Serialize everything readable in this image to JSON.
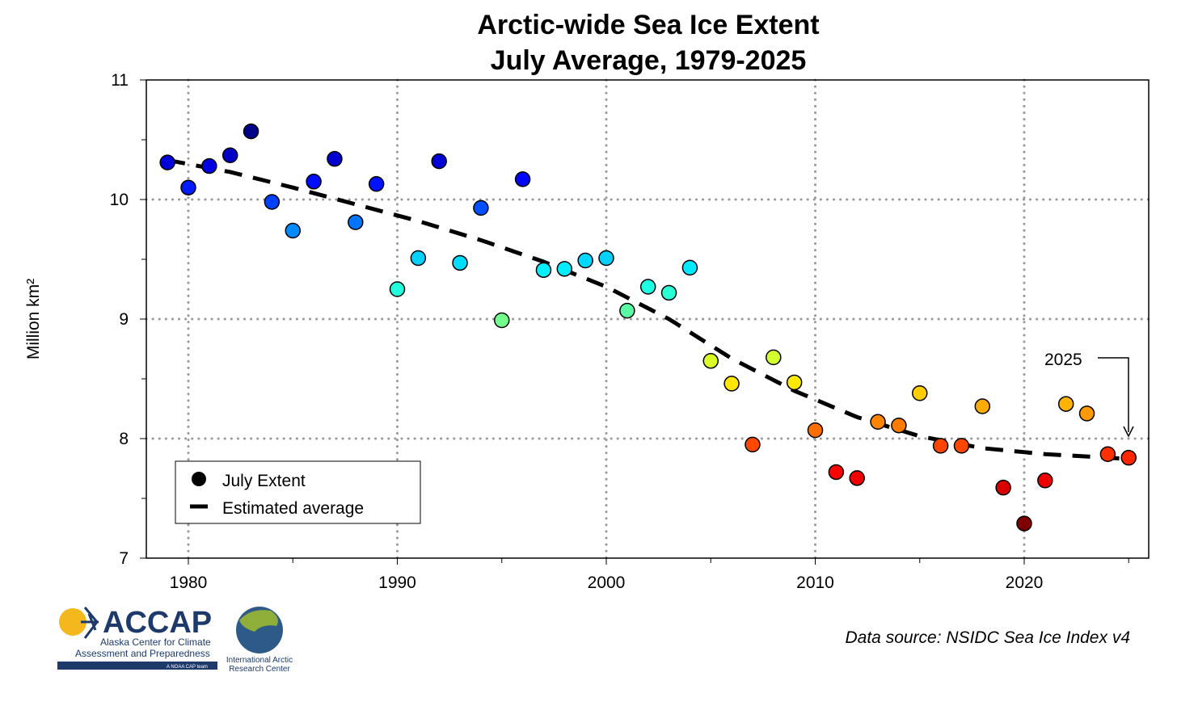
{
  "chart_data": {
    "type": "scatter",
    "title": [
      "Arctic-wide Sea Ice Extent",
      "July Average, 1979-2025"
    ],
    "xlabel": "",
    "ylabel": "Million km²",
    "xlim": [
      1977,
      2026
    ],
    "ylim": [
      7,
      11
    ],
    "xticks": [
      "1980",
      "1990",
      "2000",
      "2010",
      "2020"
    ],
    "yticks": [
      "7",
      "8",
      "9",
      "10",
      "11"
    ],
    "grid": true,
    "legend": {
      "placement": "bottom-left",
      "entries": [
        "July Extent",
        "Estimated average"
      ]
    },
    "annotation": "2025",
    "color_range": [
      7.3,
      10.6
    ],
    "series": [
      {
        "name": "July Extent",
        "type": "scatter",
        "x": [
          1979,
          1980,
          1981,
          1982,
          1983,
          1984,
          1985,
          1986,
          1987,
          1988,
          1989,
          1990,
          1991,
          1992,
          1993,
          1994,
          1995,
          1996,
          1997,
          1998,
          1999,
          2000,
          2001,
          2002,
          2003,
          2004,
          2005,
          2006,
          2007,
          2008,
          2009,
          2010,
          2011,
          2012,
          2013,
          2014,
          2015,
          2016,
          2017,
          2018,
          2019,
          2020,
          2021,
          2022,
          2023,
          2024,
          2025
        ],
        "y": [
          10.31,
          10.1,
          10.28,
          10.37,
          10.57,
          9.98,
          9.74,
          10.15,
          10.34,
          9.81,
          10.13,
          9.25,
          9.51,
          10.32,
          9.47,
          9.93,
          8.99,
          10.17,
          9.41,
          9.42,
          9.49,
          9.51,
          9.07,
          9.27,
          9.22,
          9.43,
          8.65,
          8.46,
          7.95,
          8.68,
          8.47,
          8.07,
          7.72,
          7.67,
          8.14,
          8.11,
          8.38,
          7.94,
          7.94,
          8.27,
          7.59,
          7.29,
          7.65,
          8.29,
          8.21,
          7.87,
          7.84
        ]
      },
      {
        "name": "Estimated average",
        "type": "line",
        "x": [
          1979,
          1982,
          1985,
          1988,
          1991,
          1994,
          1997,
          2000,
          2003,
          2006,
          2009,
          2012,
          2015,
          2018,
          2021,
          2025
        ],
        "y": [
          10.33,
          10.23,
          10.1,
          9.96,
          9.82,
          9.66,
          9.48,
          9.27,
          9.0,
          8.67,
          8.4,
          8.18,
          8.02,
          7.92,
          7.87,
          7.83
        ]
      }
    ]
  },
  "footer": {
    "data_source": "Data source: NSIDC Sea Ice Index v4",
    "logo_accap": "ACCAP",
    "logo_accap_sub1": "Alaska Center for Climate",
    "logo_accap_sub2": "Assessment and Preparedness",
    "logo_accap_sub3": "A NOAA CAP team",
    "logo_iarc1": "International Arctic",
    "logo_iarc2": "Research Center"
  }
}
